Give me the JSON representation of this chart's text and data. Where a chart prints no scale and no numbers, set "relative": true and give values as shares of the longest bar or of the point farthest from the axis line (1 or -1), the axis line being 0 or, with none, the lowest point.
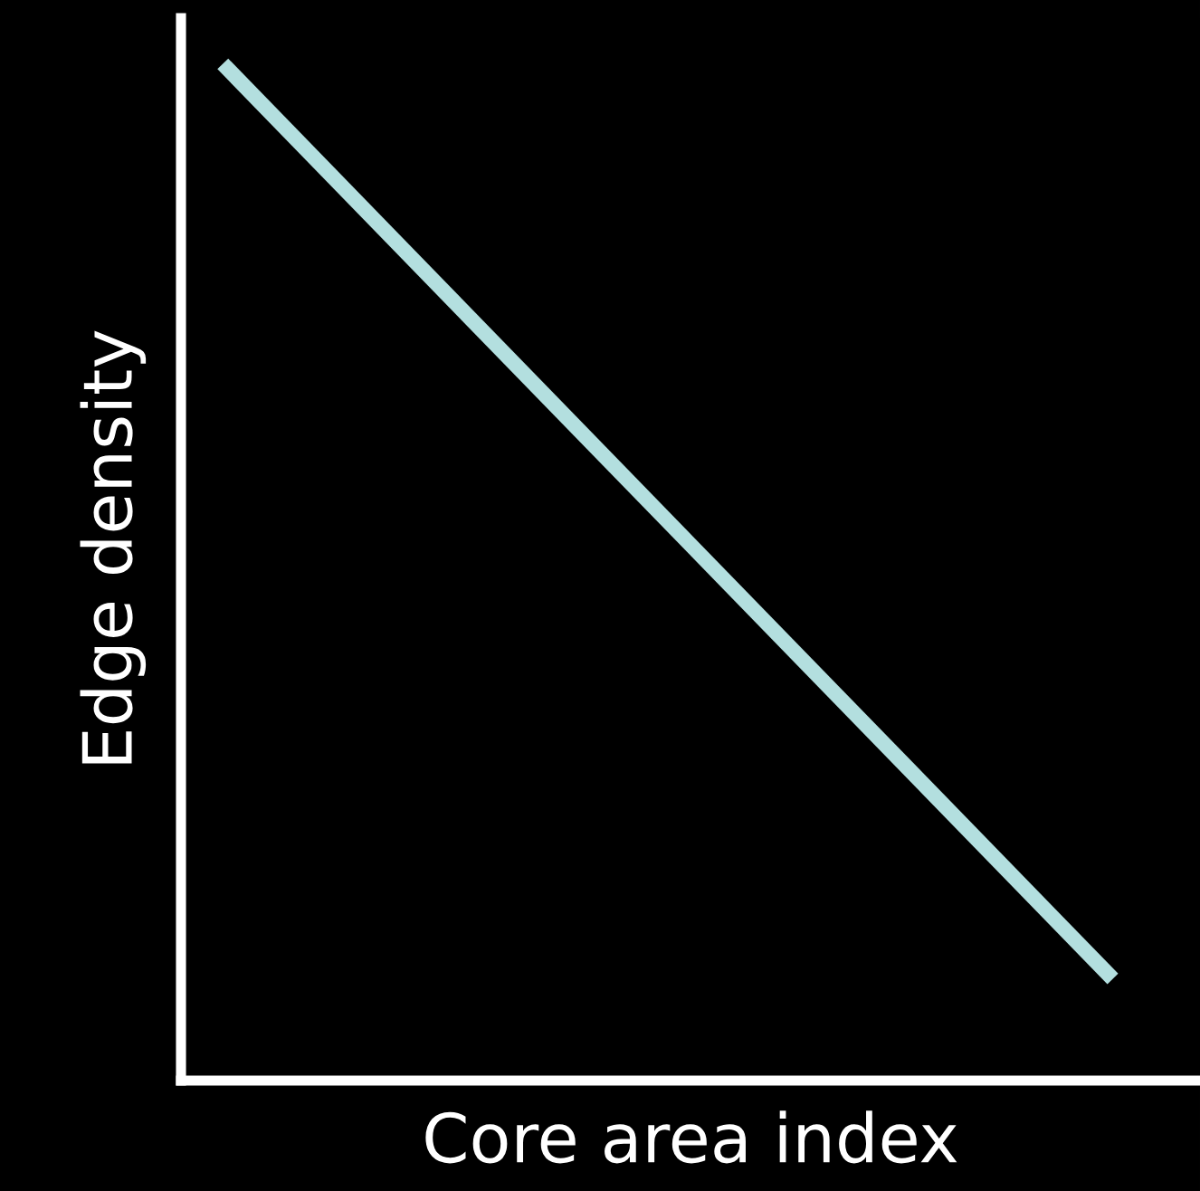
{
  "chart_data": {
    "type": "line",
    "relative": true,
    "xlabel": "Core area index",
    "ylabel": "Edge density",
    "categories": [
      null,
      null
    ],
    "series": [
      {
        "color": "#b3dfdf",
        "values": [
          1,
          0.1
        ]
      }
    ],
    "ref_lines": [
      {
        "axis": "y",
        "value": 0,
        "color": "#ffffff"
      }
    ],
    "tick_labels": false,
    "legend": false,
    "marker": "none",
    "line_style": "solid"
  }
}
